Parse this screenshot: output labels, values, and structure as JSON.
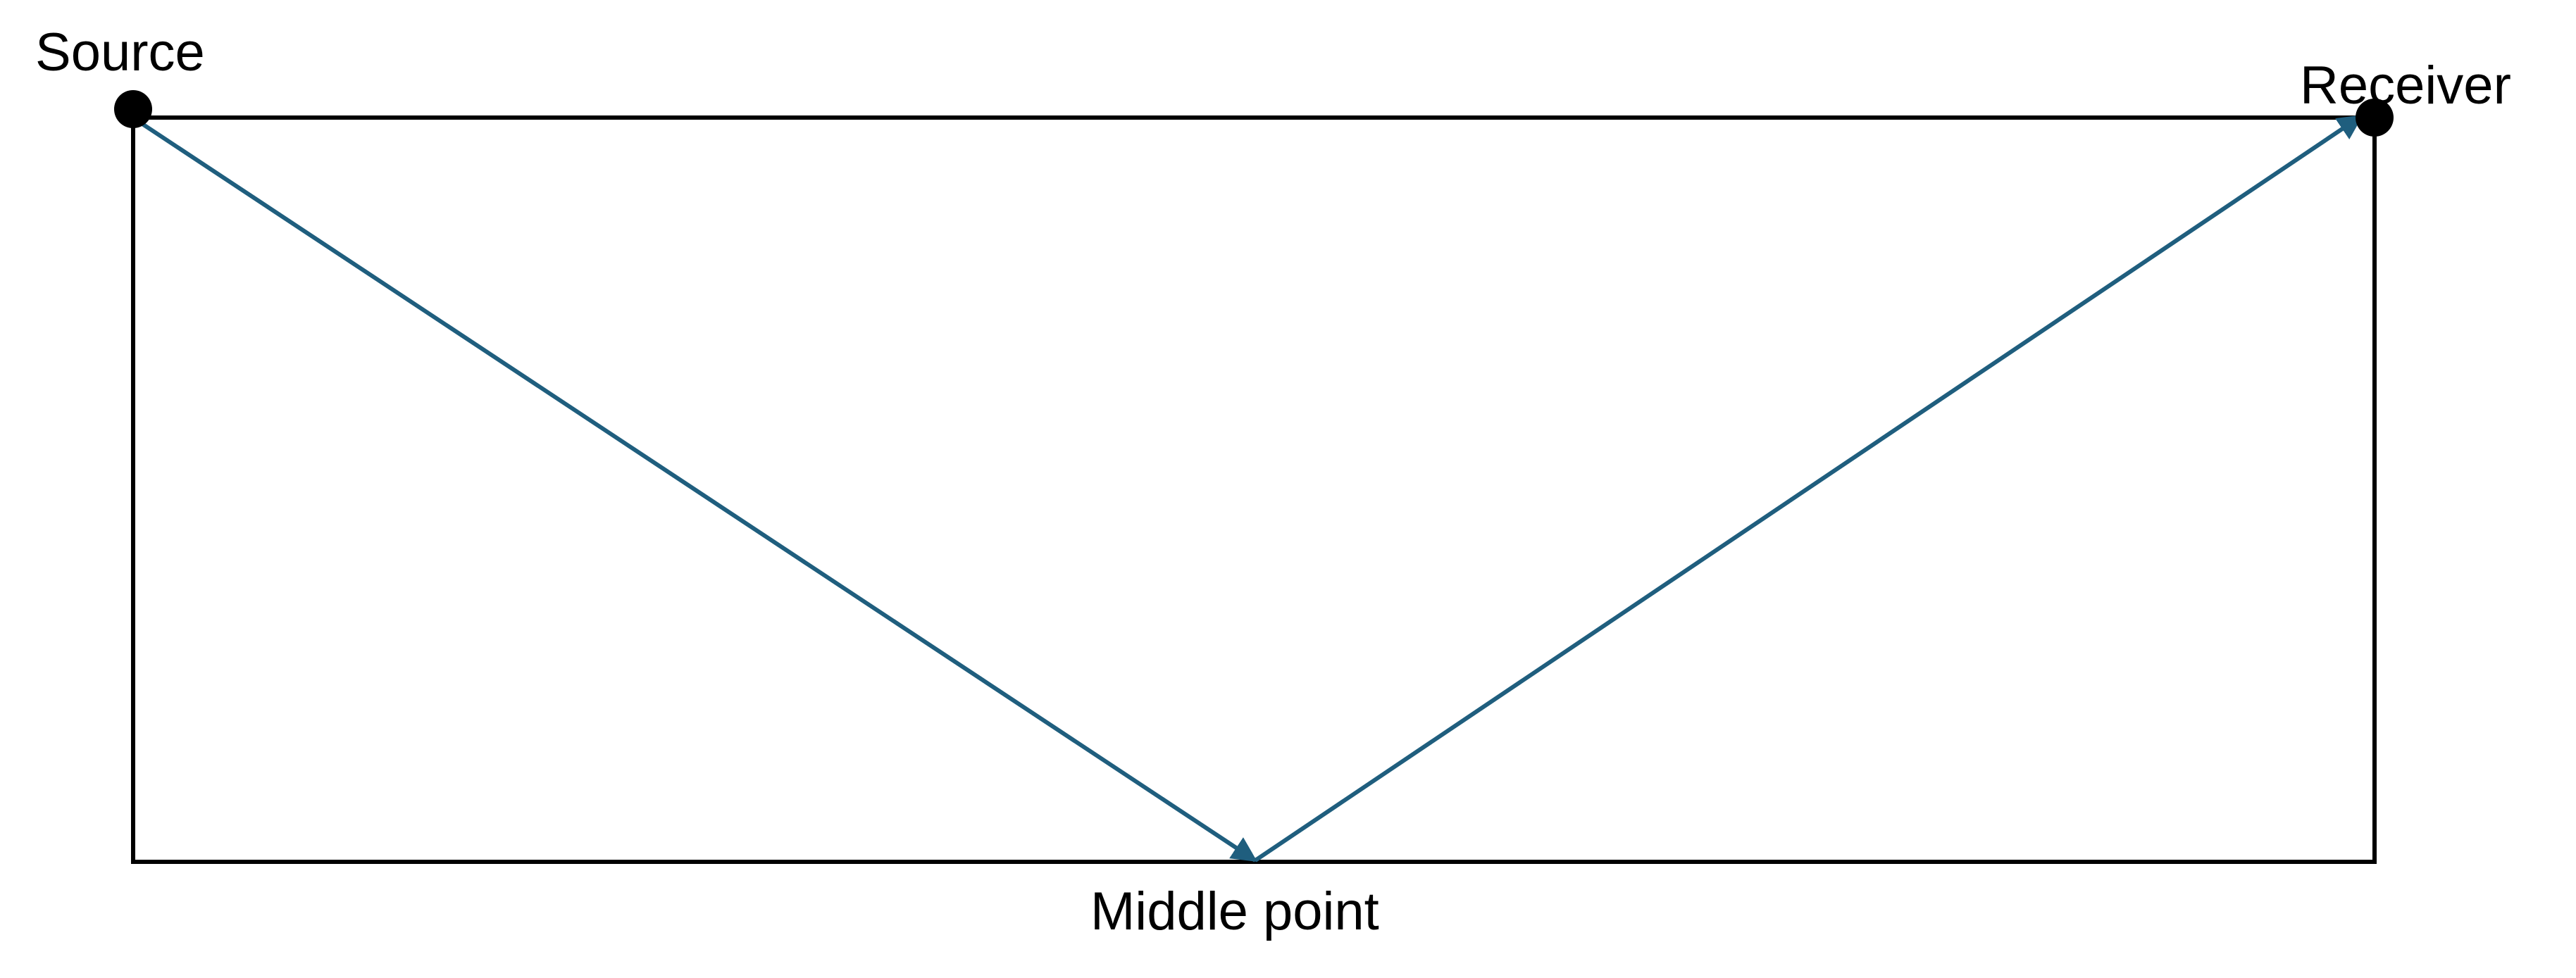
{
  "labels": {
    "source": "Source",
    "receiver": "Receiver",
    "middle_point": "Middle point"
  },
  "colors": {
    "frame": "#000000",
    "ray": "#1f5e7e",
    "point": "#000000"
  }
}
